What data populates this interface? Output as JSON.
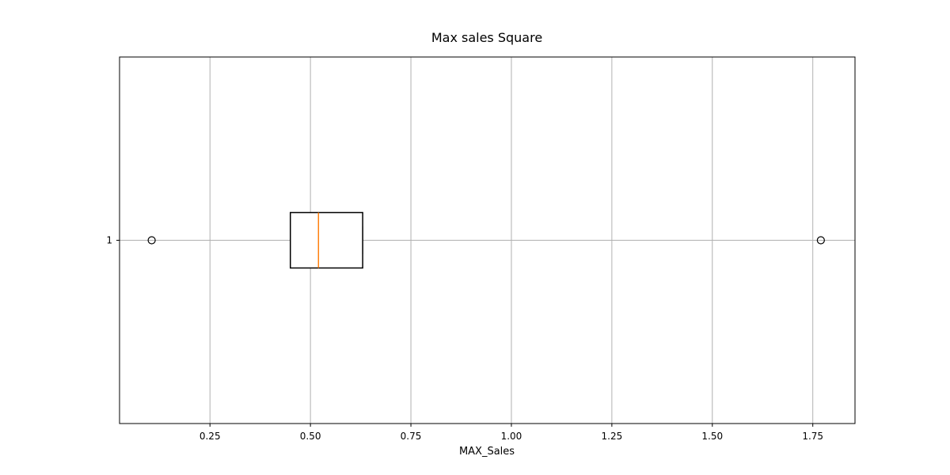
{
  "chart_data": {
    "type": "boxplot",
    "orientation": "horizontal",
    "title": "Max sales Square",
    "xlabel": "MAX_Sales",
    "ylabel": "",
    "xlim": [
      0.025,
      1.855
    ],
    "x_ticks": [
      0.25,
      0.5,
      0.75,
      1.0,
      1.25,
      1.5,
      1.75
    ],
    "x_tick_labels": [
      "0.25",
      "0.50",
      "0.75",
      "1.00",
      "1.25",
      "1.50",
      "1.75"
    ],
    "y_ticks": [
      1
    ],
    "y_tick_labels": [
      "1"
    ],
    "grid": true,
    "boxes": [
      {
        "position": 1,
        "q1": 0.45,
        "median": 0.52,
        "q3": 0.63,
        "whisker_low": 0.45,
        "whisker_high": 0.63,
        "outliers": [
          0.105,
          1.77
        ]
      }
    ],
    "colors": {
      "box": "#000000",
      "median": "#ff7f0e",
      "grid": "#b0b0b0",
      "outlier": "#000000"
    }
  }
}
